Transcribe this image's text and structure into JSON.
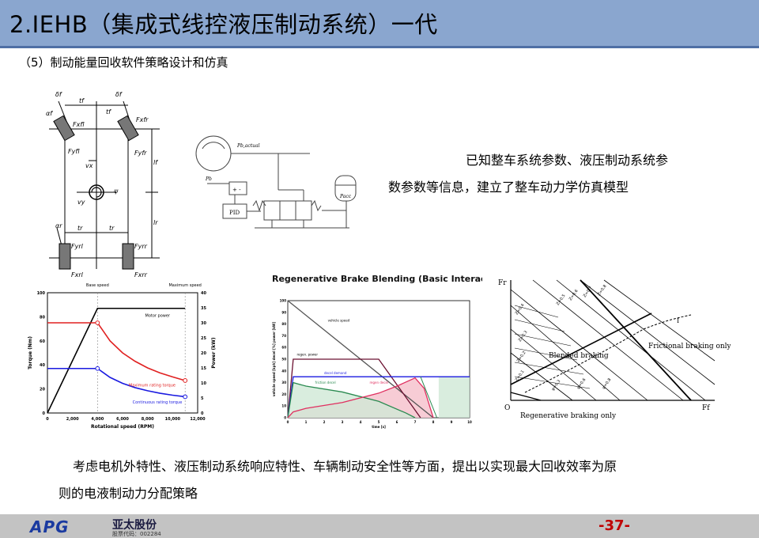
{
  "slide": {
    "title": "2.IEHB（集成式线控液压制动系统）一代",
    "subtitle": "（5）制动能量回收软件策略设计和仿真",
    "right_text_line1": "已知整车系统参数、液压制动系统参",
    "right_text_line2": "数参数等信息，建立了整车动力学仿真模型",
    "bottom_text_line1": "考虑电机外特性、液压制动系统响应特性、车辆制动安全性等方面，提出以实现最大回收效率为原",
    "bottom_text_line2": "则的电液制动力分配策略",
    "page_number": "-37-"
  },
  "footer": {
    "logo_text": "APG",
    "company": "亚太股份",
    "stock_code": "股票代码：002284"
  },
  "vehicle_diagram": {
    "labels": [
      "δf",
      "αf",
      "tf",
      "tf",
      "δf",
      "Fxfl",
      "Fyfl",
      "Fxfr",
      "Fyfr",
      "vx",
      "ψ",
      "vy",
      "lf",
      "lr",
      "αr",
      "tr",
      "tr",
      "Fyrl",
      "Fyrr",
      "Fxrl",
      "Fxrr"
    ]
  },
  "hydraulic_diagram": {
    "labels": {
      "p_actual": "Pb,actual",
      "p_b": "Pb",
      "pid": "PID",
      "p_acc": "Pacc"
    }
  },
  "chart_data": [
    {
      "type": "line",
      "title": "",
      "xlabel": "Rotational speed (RPM)",
      "ylabel": "Torque (Nm)",
      "y2label": "Power (kW)",
      "xlim": [
        0,
        12000
      ],
      "ylim": [
        0,
        100
      ],
      "y2lim": [
        0,
        40
      ],
      "x_ticks": [
        "0",
        "2,000",
        "4,000",
        "6,000",
        "8,000",
        "10,000",
        "12,000"
      ],
      "y_ticks": [
        "0",
        "20",
        "40",
        "60",
        "80",
        "100"
      ],
      "y2_ticks": [
        "0",
        "5",
        "10",
        "15",
        "20",
        "25",
        "30",
        "35",
        "40"
      ],
      "annotations": [
        "Base speed",
        "Maximum speed",
        "Motor power",
        "Maximum rating torque",
        "Continuous rating torque"
      ],
      "series": [
        {
          "name": "Motor power",
          "color": "#000000",
          "x": [
            0,
            4000,
            11000
          ],
          "y": [
            0,
            87,
            87
          ]
        },
        {
          "name": "Maximum rating torque",
          "color": "#e02020",
          "x": [
            0,
            4000,
            5000,
            6000,
            7000,
            8000,
            9000,
            10000,
            11000
          ],
          "y": [
            75,
            75,
            60,
            50,
            43,
            37.5,
            33.3,
            30,
            27
          ]
        },
        {
          "name": "Continuous rating torque",
          "color": "#1a1ae0",
          "x": [
            0,
            4000,
            5000,
            6000,
            7000,
            8000,
            9000,
            10000,
            11000
          ],
          "y": [
            37,
            37,
            29.6,
            24.7,
            21.1,
            18.5,
            16.4,
            14.8,
            13.5
          ]
        }
      ],
      "markers": [
        {
          "x": 4000,
          "y": 75,
          "color": "#e02020"
        },
        {
          "x": 4000,
          "y": 37,
          "color": "#1a1ae0"
        },
        {
          "x": 11000,
          "y": 27,
          "color": "#e02020"
        },
        {
          "x": 11000,
          "y": 13.5,
          "color": "#1a1ae0"
        }
      ]
    },
    {
      "type": "area",
      "title": "Regenerative Brake Blending (Basic Interaction)",
      "xlabel": "time [s]",
      "ylabel": "vehicle speed [kph] decel [%] power [kW]",
      "xlim": [
        0,
        10
      ],
      "ylim": [
        0,
        100
      ],
      "x_ticks": [
        "0",
        "1",
        "2",
        "3",
        "4",
        "5",
        "6",
        "7",
        "8",
        "9",
        "10"
      ],
      "y_ticks": [
        "0",
        "10",
        "20",
        "30",
        "40",
        "50",
        "60",
        "70",
        "80",
        "90",
        "100"
      ],
      "annotations": [
        "vehicle speed",
        "regen. power",
        "decel demand",
        "friction decel",
        "regen decel"
      ],
      "series": [
        {
          "name": "vehicle speed",
          "color": "#555555",
          "x": [
            0,
            8
          ],
          "y": [
            100,
            0
          ]
        },
        {
          "name": "regen. power",
          "color": "#6b1030",
          "x": [
            0,
            0.3,
            5,
            7.3
          ],
          "y": [
            0,
            50,
            50,
            0
          ]
        },
        {
          "name": "decel demand",
          "color": "#1a1ae0",
          "x": [
            0,
            0.3,
            10
          ],
          "y": [
            0,
            35,
            35
          ]
        },
        {
          "name": "friction decel",
          "color": "#2a8a50",
          "x": [
            0,
            0.3,
            1,
            3,
            5,
            6.5,
            7
          ],
          "y": [
            0,
            30,
            27,
            22,
            14,
            4,
            0
          ]
        },
        {
          "name": "regen decel",
          "color": "#e03060",
          "x": [
            0,
            0.3,
            1,
            3,
            5,
            6,
            7,
            7.5,
            8
          ],
          "y": [
            0,
            5,
            8,
            13,
            21,
            27,
            34,
            25,
            0
          ]
        }
      ]
    },
    {
      "type": "line",
      "title": "",
      "xlabel": "Ff",
      "ylabel": "Fr",
      "annotations": [
        "Z=0.5",
        "Z=0.6",
        "Z=0.7",
        "Z=0.8",
        "Z=0.4",
        "Z=0.3",
        "Z=0.2",
        "Z=0.1",
        "φ=0.3",
        "φ=0.6",
        "φ=0.8",
        "I",
        "Frictional braking only",
        "Blended braking",
        "Regenerative braking only",
        "O"
      ]
    }
  ]
}
